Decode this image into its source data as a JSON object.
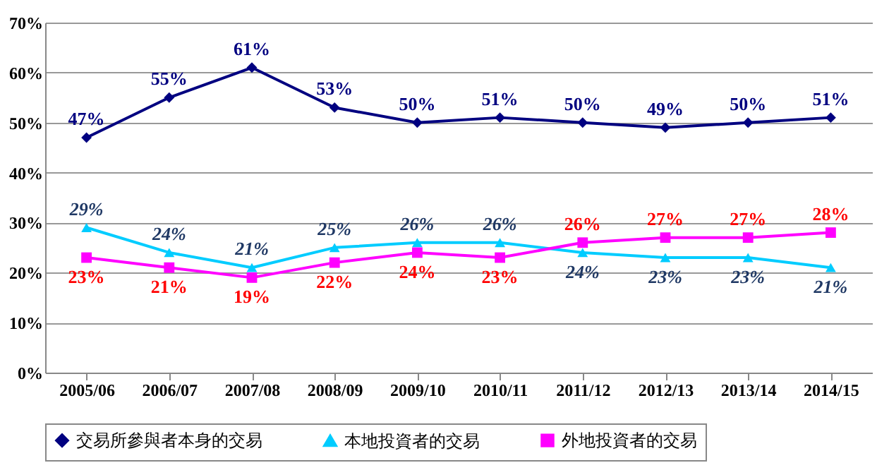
{
  "chart_data": {
    "type": "line",
    "categories": [
      "2005/06",
      "2006/07",
      "2007/08",
      "2008/09",
      "2009/10",
      "2010/11",
      "2011/12",
      "2012/13",
      "2013/14",
      "2014/15"
    ],
    "series": [
      {
        "name": "交易所參與者本身的交易",
        "color": "#000080",
        "marker": "diamond",
        "values": [
          47,
          55,
          61,
          53,
          50,
          51,
          50,
          49,
          50,
          51
        ],
        "value_labels": [
          "47%",
          "55%",
          "61%",
          "53%",
          "50%",
          "51%",
          "50%",
          "49%",
          "50%",
          "51%"
        ]
      },
      {
        "name": "本地投資者的交易",
        "color": "#00ccff",
        "marker": "triangle",
        "values": [
          29,
          24,
          21,
          25,
          26,
          26,
          24,
          23,
          23,
          21
        ],
        "value_labels": [
          "29%",
          "24%",
          "21%",
          "25%",
          "26%",
          "26%",
          "24%",
          "23%",
          "23%",
          "21%"
        ]
      },
      {
        "name": "外地投資者的交易",
        "color": "#ff00ff",
        "marker": "square",
        "values": [
          23,
          21,
          19,
          22,
          24,
          23,
          26,
          27,
          27,
          28
        ],
        "value_labels": [
          "23%",
          "21%",
          "19%",
          "22%",
          "24%",
          "23%",
          "26%",
          "27%",
          "27%",
          "28%"
        ]
      }
    ],
    "ylim": [
      0,
      70
    ],
    "yticks": [
      {
        "value": 0,
        "label": "0%"
      },
      {
        "value": 10,
        "label": "10%"
      },
      {
        "value": 20,
        "label": "20%"
      },
      {
        "value": 30,
        "label": "30%"
      },
      {
        "value": 40,
        "label": "40%"
      },
      {
        "value": 50,
        "label": "50%"
      },
      {
        "value": 60,
        "label": "60%"
      },
      {
        "value": 70,
        "label": "70%"
      }
    ],
    "grid": "y",
    "legend": "bottom"
  }
}
